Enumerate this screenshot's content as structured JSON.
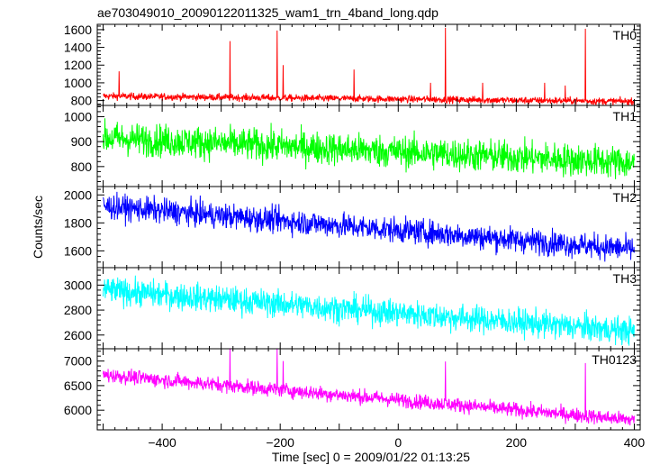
{
  "chart_data": {
    "type": "line",
    "title": "ae703049010_20090122011325_wam1_trn_4band_long.qdp",
    "xlabel": "Time [sec] 0 = 2009/01/22 01:13:25",
    "ylabel": "Counts/sec",
    "xlim": [
      -510,
      410
    ],
    "x_ticks": [
      -400,
      -200,
      0,
      200,
      400
    ],
    "grid": false,
    "panels": [
      {
        "name": "TH0",
        "color": "#ff0000",
        "ylim": [
          745,
          1660
        ],
        "y_ticks": [
          800,
          1000,
          1200,
          1400,
          1600
        ],
        "baseline_start": 850,
        "baseline_end": 790,
        "noise": 20,
        "spikes": [
          {
            "x": -473,
            "y": 1130
          },
          {
            "x": -285,
            "y": 1470
          },
          {
            "x": -205,
            "y": 1590
          },
          {
            "x": -195,
            "y": 1200
          },
          {
            "x": -75,
            "y": 1150
          },
          {
            "x": 55,
            "y": 1000
          },
          {
            "x": 80,
            "y": 1620
          },
          {
            "x": 143,
            "y": 1000
          },
          {
            "x": 248,
            "y": 1000
          },
          {
            "x": 283,
            "y": 970
          },
          {
            "x": 317,
            "y": 1610
          }
        ]
      },
      {
        "name": "TH1",
        "color": "#00ff00",
        "ylim": [
          720,
          1045
        ],
        "y_ticks": [
          800,
          900,
          1000
        ],
        "baseline_start": 915,
        "baseline_end": 815,
        "noise": 33,
        "spikes": []
      },
      {
        "name": "TH2",
        "color": "#0000ff",
        "ylim": [
          1480,
          2060
        ],
        "y_ticks": [
          1600,
          1800,
          2000
        ],
        "baseline_start": 1920,
        "baseline_end": 1610,
        "noise": 45,
        "spikes": []
      },
      {
        "name": "TH3",
        "color": "#00ffff",
        "ylim": [
          2490,
          3140
        ],
        "y_ticks": [
          2600,
          2800,
          3000
        ],
        "baseline_start": 2960,
        "baseline_end": 2630,
        "noise": 55,
        "spikes": []
      },
      {
        "name": "TH0123",
        "color": "#ff00ff",
        "ylim": [
          5600,
          7250
        ],
        "y_ticks": [
          6000,
          6500,
          7000
        ],
        "baseline_start": 6720,
        "baseline_end": 5800,
        "noise": 75,
        "spikes": [
          {
            "x": -285,
            "y": 7250
          },
          {
            "x": -205,
            "y": 7250
          },
          {
            "x": -195,
            "y": 7000
          },
          {
            "x": 80,
            "y": 6990
          },
          {
            "x": 317,
            "y": 6960
          }
        ]
      }
    ]
  }
}
